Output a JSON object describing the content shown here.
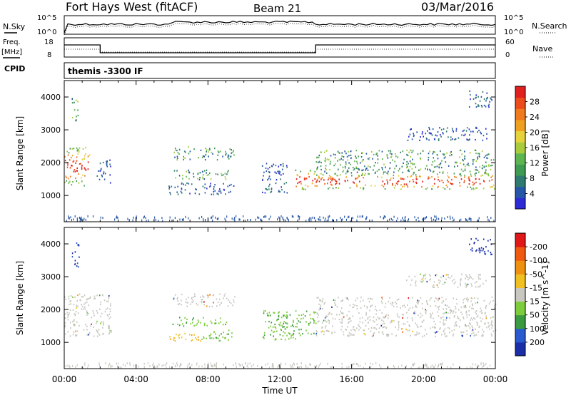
{
  "header": {
    "station": "Fort Hays West (fitACF)",
    "beam": "Beam 21",
    "date": "03/Mar/2016"
  },
  "noise_panel": {
    "left_label": "N.Sky",
    "left_ticks": [
      "10^5",
      "10^0"
    ],
    "right_label": "N.Search",
    "right_ticks": [
      "10^5",
      "10^0"
    ]
  },
  "freq_panel": {
    "left_label_1": "Freq.",
    "left_label_2": "[MHz]",
    "left_ticks": [
      "18",
      "8"
    ],
    "right_label": "Nave",
    "right_ticks": [
      "60",
      "0"
    ]
  },
  "cpid_panel": {
    "left_label": "CPID",
    "text": "themis -3300 IF"
  },
  "chart_data": [
    {
      "type": "heatmap",
      "name": "power-panel",
      "ylabel": "Slant Range [km]",
      "yticks": [
        1000,
        2000,
        3000,
        4000
      ],
      "ylim": [
        200,
        4500
      ],
      "xlim": [
        0,
        24
      ],
      "colorbar": {
        "label": "Power [dB]",
        "ticks": [
          "4",
          "8",
          "12",
          "16",
          "20",
          "24",
          "28"
        ],
        "colors": [
          "#2d2bd6",
          "#2656a8",
          "#2e7a6e",
          "#3f9a52",
          "#5cb550",
          "#a8cc3c",
          "#e6d23a",
          "#f0a020",
          "#f07a1e",
          "#ec4c1c",
          "#e0201e"
        ]
      },
      "regions": [
        {
          "t0": 0.0,
          "t1": 1.4,
          "r0": 1300,
          "r1": 2500,
          "level": "high"
        },
        {
          "t0": 0.4,
          "t1": 0.8,
          "r0": 3300,
          "r1": 4000,
          "level": "mid"
        },
        {
          "t0": 1.8,
          "t1": 2.6,
          "r0": 1400,
          "r1": 2100,
          "level": "low"
        },
        {
          "t0": 6.0,
          "t1": 9.5,
          "r0": 2100,
          "r1": 2500,
          "level": "mid"
        },
        {
          "t0": 6.0,
          "t1": 9.2,
          "r0": 1500,
          "r1": 1800,
          "level": "mid"
        },
        {
          "t0": 5.8,
          "t1": 9.5,
          "r0": 1050,
          "r1": 1400,
          "level": "low"
        },
        {
          "t0": 11.0,
          "t1": 12.4,
          "r0": 1100,
          "r1": 2000,
          "level": "low"
        },
        {
          "t0": 12.8,
          "t1": 14.0,
          "r0": 1200,
          "r1": 1800,
          "level": "high"
        },
        {
          "t0": 14.0,
          "t1": 24.0,
          "r0": 1200,
          "r1": 1700,
          "level": "high"
        },
        {
          "t0": 14.0,
          "t1": 24.0,
          "r0": 1700,
          "r1": 2400,
          "level": "mid"
        },
        {
          "t0": 19.0,
          "t1": 23.5,
          "r0": 2700,
          "r1": 3100,
          "level": "low"
        },
        {
          "t0": 22.5,
          "t1": 23.8,
          "r0": 3700,
          "r1": 4200,
          "level": "low"
        }
      ]
    },
    {
      "type": "heatmap",
      "name": "velocity-panel",
      "ylabel": "Slant Range [km]",
      "yticks": [
        1000,
        2000,
        3000,
        4000
      ],
      "ylim": [
        200,
        4500
      ],
      "xlim": [
        0,
        24
      ],
      "xticks": [
        "00:00",
        "04:00",
        "08:00",
        "12:00",
        "16:00",
        "20:00",
        "00:00"
      ],
      "xlabel": "Time UT",
      "colorbar": {
        "label": "Velocity [m s^-1]",
        "ticks": [
          "200",
          "100",
          "50",
          "15",
          "-15",
          "-50",
          "-100",
          "-200"
        ],
        "colors": [
          "#1a2ea8",
          "#2a5ad0",
          "#3a9a40",
          "#7ccc3c",
          "#c8c8c0",
          "#f0c020",
          "#f09010",
          "#f05a10",
          "#e01818"
        ]
      },
      "regions": [
        {
          "t0": 0.0,
          "t1": 2.6,
          "r0": 1200,
          "r1": 2500,
          "level": "ground"
        },
        {
          "t0": 0.4,
          "t1": 0.8,
          "r0": 3300,
          "r1": 4100,
          "level": "toward"
        },
        {
          "t0": 6.0,
          "t1": 9.5,
          "r0": 2100,
          "r1": 2500,
          "level": "ground"
        },
        {
          "t0": 6.0,
          "t1": 9.2,
          "r0": 1500,
          "r1": 1800,
          "level": "toward-light"
        },
        {
          "t0": 5.8,
          "t1": 7.6,
          "r0": 1050,
          "r1": 1350,
          "level": "away"
        },
        {
          "t0": 7.6,
          "t1": 9.5,
          "r0": 1050,
          "r1": 1400,
          "level": "toward-light"
        },
        {
          "t0": 11.0,
          "t1": 14.0,
          "r0": 1100,
          "r1": 2000,
          "level": "toward-light"
        },
        {
          "t0": 14.0,
          "t1": 24.0,
          "r0": 1200,
          "r1": 2400,
          "level": "ground"
        },
        {
          "t0": 19.0,
          "t1": 23.5,
          "r0": 2700,
          "r1": 3100,
          "level": "ground"
        },
        {
          "t0": 22.5,
          "t1": 23.8,
          "r0": 3700,
          "r1": 4200,
          "level": "toward"
        }
      ]
    }
  ]
}
